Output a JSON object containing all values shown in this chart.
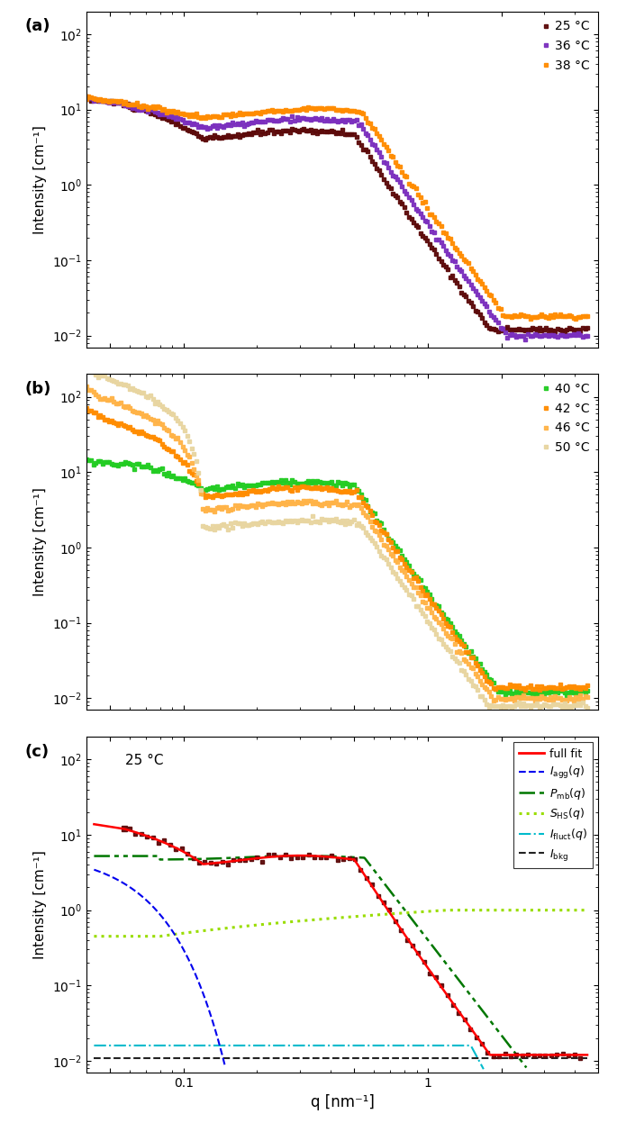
{
  "panel_a_colors": [
    "#5c0a0a",
    "#7b2fbe",
    "#ff8c00"
  ],
  "panel_a_labels": [
    "25 °C",
    "36 °C",
    "38 °C"
  ],
  "panel_b_colors": [
    "#22cc22",
    "#ff8c00",
    "#ffb347",
    "#e8d5a0"
  ],
  "panel_b_labels": [
    "40 °C",
    "42 °C",
    "46 °C",
    "50 °C"
  ],
  "panel_c_data_color": "#5c0a0a",
  "fit_colors": {
    "full_fit": "#ff0000",
    "I_agg": "#0000ee",
    "P_mb": "#007700",
    "S_HS": "#99dd00",
    "I_fluct": "#00bbcc",
    "I_bkg": "#222222"
  },
  "q_min": 0.04,
  "q_max": 5.0,
  "ylim": [
    0.007,
    200
  ],
  "ylabel": "Intensity [cm⁻¹]",
  "xlabel": "q [nm⁻¹]"
}
